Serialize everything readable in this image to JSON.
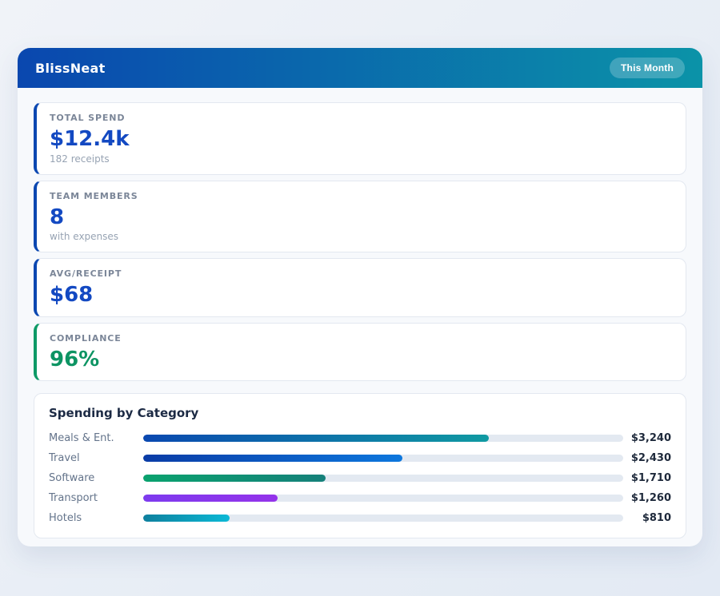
{
  "app": {
    "title": "BlissNeat",
    "period_badge": "This Month"
  },
  "theme": {
    "header_gradient_start": "#0a47af",
    "header_gradient_end": "#0b93a8",
    "page_bg": "#e9eef6",
    "panel_bg": "#f7f9fc",
    "card_border": "#e3e8f0",
    "accent_blue": "#0a47b1",
    "accent_green": "#0d9a66",
    "value_blue": "#1349c2",
    "value_green": "#0d9463"
  },
  "stats": {
    "cards": [
      {
        "label": "TOTAL SPEND",
        "value": "$12.4k",
        "sub": "182 receipts",
        "accent": "#0a47b1",
        "value_color": "#1349c2"
      },
      {
        "label": "TEAM MEMBERS",
        "value": "8",
        "sub": "with expenses",
        "accent": "#0a47b1",
        "value_color": "#1349c2"
      },
      {
        "label": "AVG/RECEIPT",
        "value": "$68",
        "sub": "",
        "accent": "#0a47b1",
        "value_color": "#1349c2"
      },
      {
        "label": "COMPLIANCE",
        "value": "96%",
        "sub": "",
        "accent": "#0d9a66",
        "value_color": "#0d9463"
      }
    ]
  },
  "chart": {
    "title": "Spending by Category"
  },
  "chart_data": {
    "type": "bar",
    "orientation": "horizontal",
    "title": "Spending by Category",
    "categories": [
      "Meals & Ent.",
      "Travel",
      "Software",
      "Transport",
      "Hotels"
    ],
    "values": [
      3240,
      2430,
      1710,
      1260,
      810
    ],
    "value_labels": [
      "$3,240",
      "$2,430",
      "$1,710",
      "$1,260",
      "$810"
    ],
    "xlim": [
      0,
      4500
    ],
    "pct_of_scale": [
      72,
      54,
      38,
      28,
      18
    ],
    "bar_gradients": [
      [
        "#0a48b0",
        "#109aa2"
      ],
      [
        "#0a3ca6",
        "#0d77dd"
      ],
      [
        "#0aa26e",
        "#15807a"
      ],
      [
        "#7d3bee",
        "#9433ea"
      ],
      [
        "#0e809e",
        "#0cb9d6"
      ]
    ],
    "track_color": "#e3e9f1",
    "grid": false,
    "legend": false
  }
}
